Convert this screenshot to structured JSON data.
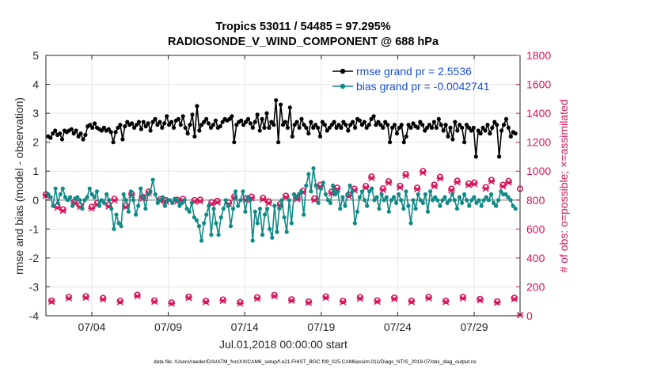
{
  "chart_data": {
    "type": "line",
    "title": "Tropics 53011 / 54485 = 97.295%",
    "subtitle": "RADIOSONDE_V_WIND_COMPONENT @ 688 hPa",
    "xlabel": "Jul.01,2018 00:00:00 start",
    "ylabel_left": "rmse and bias (model - observation)",
    "ylabel_right": "# of obs: o=possible; ×=assimilated",
    "footer": "data file: /Users/raeder/DAI/ATM_forcXX/CAM6_setup/f.e21.FHIST_BGC.f09_025.CAM6assim.011/Diags_NTrS_2018-07/obs_diag_output.nc",
    "xlim": [
      0,
      31
    ],
    "ylim_left": [
      -4,
      5
    ],
    "ylim_right": [
      0,
      1800
    ],
    "x_ticks": [
      3,
      8,
      13,
      18,
      23,
      28
    ],
    "x_tick_labels": [
      "07/04",
      "07/09",
      "07/14",
      "07/19",
      "07/24",
      "07/29"
    ],
    "y_ticks_left": [
      -4,
      -3,
      -2,
      -1,
      0,
      1,
      2,
      3,
      4,
      5
    ],
    "y_tick_labels_left": [
      "-4",
      "-3",
      "-2",
      "-1",
      "0",
      "1",
      "2",
      "3",
      "4",
      "5"
    ],
    "y_ticks_right": [
      0,
      200,
      400,
      600,
      800,
      1000,
      1200,
      1400,
      1600,
      1800
    ],
    "y_tick_labels_right": [
      "0",
      "200",
      "400",
      "600",
      "800",
      "1000",
      "1200",
      "1400",
      "1600",
      "1800"
    ],
    "grid": true,
    "legend_position": "top-right",
    "colors": {
      "rmse": "#000000",
      "bias": "#0e8a87",
      "obs": "#d6135a",
      "zero": "#b3b3b3",
      "grid": "#e6e6e6",
      "legend_text": "#1a4fd6"
    },
    "series": [
      {
        "name": "rmse grand pr = 2.5536",
        "axis": "left",
        "values": [
          2.2,
          2.15,
          2.3,
          2.4,
          2.25,
          2.3,
          2.1,
          2.4,
          2.35,
          2.4,
          2.45,
          2.3,
          2.4,
          2.2,
          2.3,
          2.1,
          2.25,
          2.55,
          2.6,
          2.5,
          2.65,
          2.5,
          2.45,
          2.4,
          2.5,
          2.4,
          2.45,
          2.35,
          2.0,
          2.35,
          2.5,
          2.6,
          2.1,
          2.55,
          2.7,
          2.6,
          2.65,
          2.5,
          2.6,
          2.7,
          2.45,
          2.7,
          2.55,
          2.65,
          2.4,
          2.7,
          2.8,
          2.6,
          2.7,
          2.5,
          2.65,
          2.9,
          2.6,
          2.7,
          2.5,
          2.75,
          2.8,
          2.6,
          2.9,
          2.5,
          2.3,
          2.6,
          2.95,
          2.2,
          3.25,
          2.4,
          2.6,
          2.7,
          2.8,
          2.65,
          2.5,
          2.6,
          2.75,
          2.5,
          2.55,
          2.7,
          2.8,
          2.75,
          2.8,
          2.9,
          2.0,
          2.6,
          2.7,
          2.75,
          2.6,
          2.7,
          2.8,
          2.65,
          2.5,
          2.7,
          2.95,
          2.4,
          2.8,
          2.5,
          3.0,
          2.5,
          2.7,
          2.6,
          3.45,
          2.0,
          3.3,
          2.6,
          2.7,
          2.5,
          3.2,
          2.2,
          2.6,
          2.7,
          2.5,
          2.8,
          2.6,
          2.5,
          2.3,
          2.7,
          2.5,
          2.6,
          2.5,
          2.2,
          2.7,
          2.6,
          2.4,
          2.5,
          2.6,
          2.7,
          2.5,
          2.6,
          2.5,
          2.7,
          2.6,
          2.4,
          2.6,
          2.7,
          2.5,
          2.8,
          2.75,
          2.6,
          2.7,
          2.5,
          2.6,
          2.8,
          2.9,
          2.6,
          2.7,
          2.6,
          2.5,
          2.7,
          2.6,
          2.0,
          2.5,
          2.6,
          2.3,
          2.5,
          2.6,
          2.0,
          2.2,
          2.6,
          2.5,
          2.65,
          2.55,
          2.5,
          2.7,
          2.6,
          2.4,
          2.5,
          2.6,
          2.5,
          2.7,
          2.5,
          2.8,
          2.6,
          2.4,
          2.6,
          2.2,
          2.5,
          2.1,
          2.7,
          2.4,
          2.6,
          2.5,
          2.0,
          2.6,
          2.5,
          2.4,
          2.5,
          1.5,
          2.4,
          2.3,
          2.5,
          2.4,
          2.6,
          2.3,
          2.5,
          2.7,
          2.6,
          1.5,
          2.4,
          2.6,
          2.8,
          2.5,
          2.2,
          2.35,
          2.3
        ]
      },
      {
        "name": "bias grand pr = -0.0042741",
        "axis": "left",
        "values": [
          0.2,
          0.1,
          -0.2,
          0.4,
          -0.1,
          0.2,
          0.4,
          0.1,
          0.0,
          0.1,
          -0.2,
          0.05,
          0.1,
          0.0,
          -0.3,
          0.0,
          0.1,
          0.4,
          0.2,
          0.1,
          0.3,
          -0.2,
          0.0,
          -0.1,
          0.2,
          0.0,
          -0.3,
          -1.0,
          -0.5,
          -0.8,
          -0.9,
          0.2,
          0.0,
          -0.4,
          0.3,
          0.0,
          -0.5,
          -0.2,
          0.4,
          0.1,
          -0.3,
          0.2,
          0.3,
          0.7,
          0.2,
          -0.1,
          0.0,
          0.1,
          -0.2,
          0.0,
          0.0,
          -0.1,
          0.05,
          0.0,
          -0.2,
          -0.1,
          0.0,
          -0.3,
          -0.4,
          -0.1,
          -0.6,
          -0.7,
          -0.9,
          -1.4,
          -0.8,
          -0.5,
          -0.2,
          -1.2,
          -0.3,
          -0.8,
          -1.2,
          -0.6,
          -0.3,
          0.0,
          -0.2,
          -0.9,
          -0.3,
          0.3,
          -0.2,
          0.0,
          0.3,
          -0.4,
          0.1,
          0.0,
          -1.4,
          -0.4,
          -0.8,
          -0.3,
          -1.2,
          -0.5,
          -0.3,
          -1.0,
          -1.3,
          -0.2,
          -1.1,
          -0.3,
          0.0,
          -0.6,
          -1.1,
          0.0,
          -0.8,
          0.2,
          0.1,
          0.2,
          0.3,
          -0.5,
          0.5,
          0.9,
          0.3,
          1.1,
          0.5,
          -0.1,
          0.4,
          0.6,
          0.2,
          0.0,
          -0.1,
          0.5,
          0.2,
          0.3,
          -0.3,
          0.1,
          -0.2,
          0.2,
          0.5,
          0.3,
          -0.8,
          -0.4,
          0.1,
          0.3,
          0.0,
          -0.2,
          0.3,
          0.4,
          0.0,
          0.1,
          -0.3,
          0.2,
          0.0,
          0.1,
          -0.4,
          0.0,
          0.1,
          -0.1,
          0.2,
          0.0,
          -0.3,
          0.3,
          -0.2,
          -0.8,
          0.0,
          -0.3,
          0.2,
          0.0,
          -0.1,
          0.2,
          -0.4,
          0.3,
          0.0,
          0.1,
          0.0,
          -0.2,
          0.0,
          0.1,
          -0.1,
          0.0,
          0.2,
          0.0,
          -0.3,
          0.1,
          -0.1,
          0.2,
          0.0,
          -0.2,
          0.0,
          0.1,
          -0.1,
          0.0,
          -0.2,
          0.0,
          0.1,
          0.0,
          0.2,
          -0.1,
          -0.2,
          0.0,
          0.3,
          0.2,
          0.2,
          0.1,
          0.0,
          -0.2,
          -0.3
        ]
      },
      {
        "name": "possible",
        "axis": "right",
        "values": [
          839,
          105,
          758,
          735,
          130,
          788,
          762,
          135,
          752,
          780,
          123,
          767,
          808,
          103,
          762,
          844,
          145,
          822,
          858,
          106,
          805,
          799,
          92,
          801,
          808,
          132,
          799,
          802,
          103,
          784,
          794,
          112,
          783,
          825,
          94,
          811,
          823,
          127,
          815,
          790,
          144,
          773,
          829,
          113,
          817,
          864,
          98,
          810,
          903,
          133,
          857,
          885,
          103,
          837,
          878,
          128,
          896,
          962,
          106,
          880,
          929,
          125,
          898,
          979,
          104,
          885,
          1000,
          130,
          906,
          959,
          104,
          878,
          933,
          130,
          914,
          921,
          116,
          889,
          939,
          99,
          905,
          931,
          124,
          878
        ]
      },
      {
        "name": "assimilated",
        "axis": "right",
        "values": [
          830,
          98,
          748,
          727,
          122,
          778,
          752,
          126,
          742,
          770,
          114,
          757,
          798,
          95,
          752,
          834,
          136,
          812,
          848,
          98,
          795,
          789,
          84,
          791,
          798,
          124,
          789,
          792,
          95,
          774,
          784,
          104,
          773,
          815,
          86,
          801,
          813,
          119,
          805,
          780,
          136,
          763,
          819,
          105,
          807,
          854,
          90,
          800,
          893,
          125,
          847,
          875,
          95,
          827,
          868,
          120,
          886,
          952,
          98,
          870,
          919,
          117,
          888,
          969,
          96,
          875,
          990,
          122,
          896,
          949,
          96,
          868,
          923,
          122,
          904,
          911,
          108,
          879,
          929,
          91,
          895,
          921,
          116,
          5
        ]
      }
    ]
  }
}
